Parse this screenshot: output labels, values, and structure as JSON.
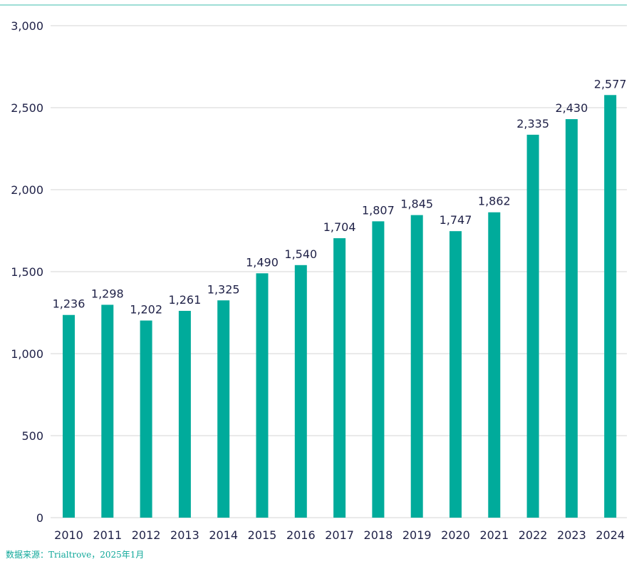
{
  "colors": {
    "bar": "#00ab9b",
    "top_rule": "#7fd3c8",
    "grid": "#d6d6d6",
    "axis_text": "#1f2147",
    "source_text": "#10a89a"
  },
  "chart_data": {
    "type": "bar",
    "categories": [
      "2010",
      "2011",
      "2012",
      "2013",
      "2014",
      "2015",
      "2016",
      "2017",
      "2018",
      "2019",
      "2020",
      "2021",
      "2022",
      "2023",
      "2024"
    ],
    "values": [
      1236,
      1298,
      1202,
      1261,
      1325,
      1490,
      1540,
      1704,
      1807,
      1845,
      1747,
      1862,
      2335,
      2430,
      2577
    ],
    "value_labels": [
      "1,236",
      "1,298",
      "1,202",
      "1,261",
      "1,325",
      "1,490",
      "1,540",
      "1,704",
      "1,807",
      "1,845",
      "1,747",
      "1,862",
      "2,335",
      "2,430",
      "2,577"
    ],
    "ylim": [
      0,
      3000
    ],
    "yticks": [
      0,
      500,
      1000,
      1500,
      2000,
      2500,
      3000
    ],
    "ytick_labels": [
      "0",
      "500",
      "1,000",
      "1,500",
      "2,000",
      "2,500",
      "3,000"
    ],
    "grid": true,
    "legend": "none",
    "title": "",
    "xlabel": "",
    "ylabel": ""
  },
  "source_note": "数据来源：Trialtrove，2025年1月"
}
